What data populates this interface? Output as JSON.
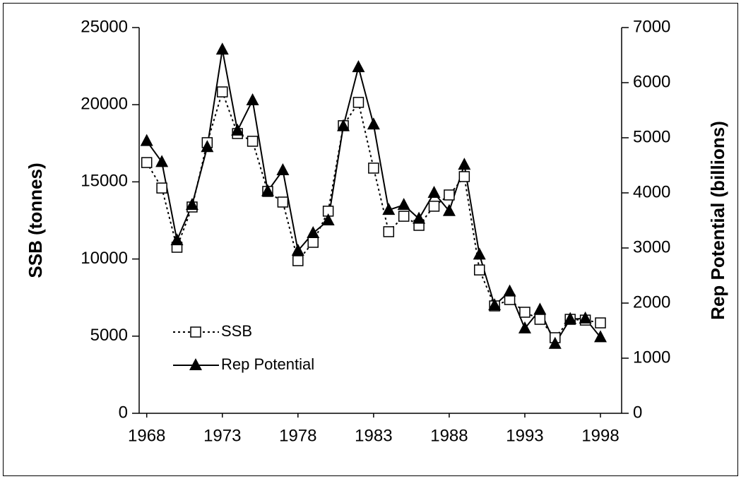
{
  "chart_data": {
    "type": "line",
    "x": [
      1968,
      1969,
      1970,
      1971,
      1972,
      1973,
      1974,
      1975,
      1976,
      1977,
      1978,
      1979,
      1980,
      1981,
      1982,
      1983,
      1984,
      1985,
      1986,
      1987,
      1988,
      1989,
      1990,
      1991,
      1992,
      1993,
      1994,
      1995,
      1996,
      1997,
      1998
    ],
    "xlim": [
      1967.5,
      1999.4
    ],
    "xticks": [
      1968,
      1973,
      1978,
      1983,
      1988,
      1993,
      1998
    ],
    "ylabel": "SSB (tonnes)",
    "ylim": [
      0,
      25000
    ],
    "yticks": [
      0,
      5000,
      10000,
      15000,
      20000,
      25000
    ],
    "y2label": "Rep Potential (billions)",
    "y2lim": [
      0,
      7000
    ],
    "y2ticks": [
      0,
      1000,
      2000,
      3000,
      4000,
      5000,
      6000,
      7000
    ],
    "legend": "lower-left",
    "series": [
      {
        "name": "SSB",
        "color": "#000000",
        "line_style": "dotted",
        "marker": "square",
        "values": [
          16250,
          14600,
          10760,
          13370,
          17540,
          20830,
          18130,
          17630,
          14380,
          13690,
          9890,
          11080,
          13100,
          18640,
          20150,
          15890,
          11770,
          12770,
          12180,
          13420,
          14150,
          15340,
          9290,
          6960,
          7370,
          6550,
          6090,
          4900,
          6090,
          6040,
          5860
        ]
      },
      {
        "name": "Rep Potential",
        "color": "#000000",
        "line_style": "solid",
        "marker": "triangle",
        "axis": "y2",
        "values": [
          4940,
          4560,
          3140,
          3780,
          4830,
          6600,
          5130,
          5680,
          4030,
          4410,
          2950,
          3270,
          3500,
          5210,
          6280,
          5240,
          3690,
          3780,
          3530,
          4000,
          3670,
          4510,
          2880,
          1960,
          2210,
          1540,
          1880,
          1260,
          1710,
          1720,
          1380
        ]
      }
    ]
  }
}
